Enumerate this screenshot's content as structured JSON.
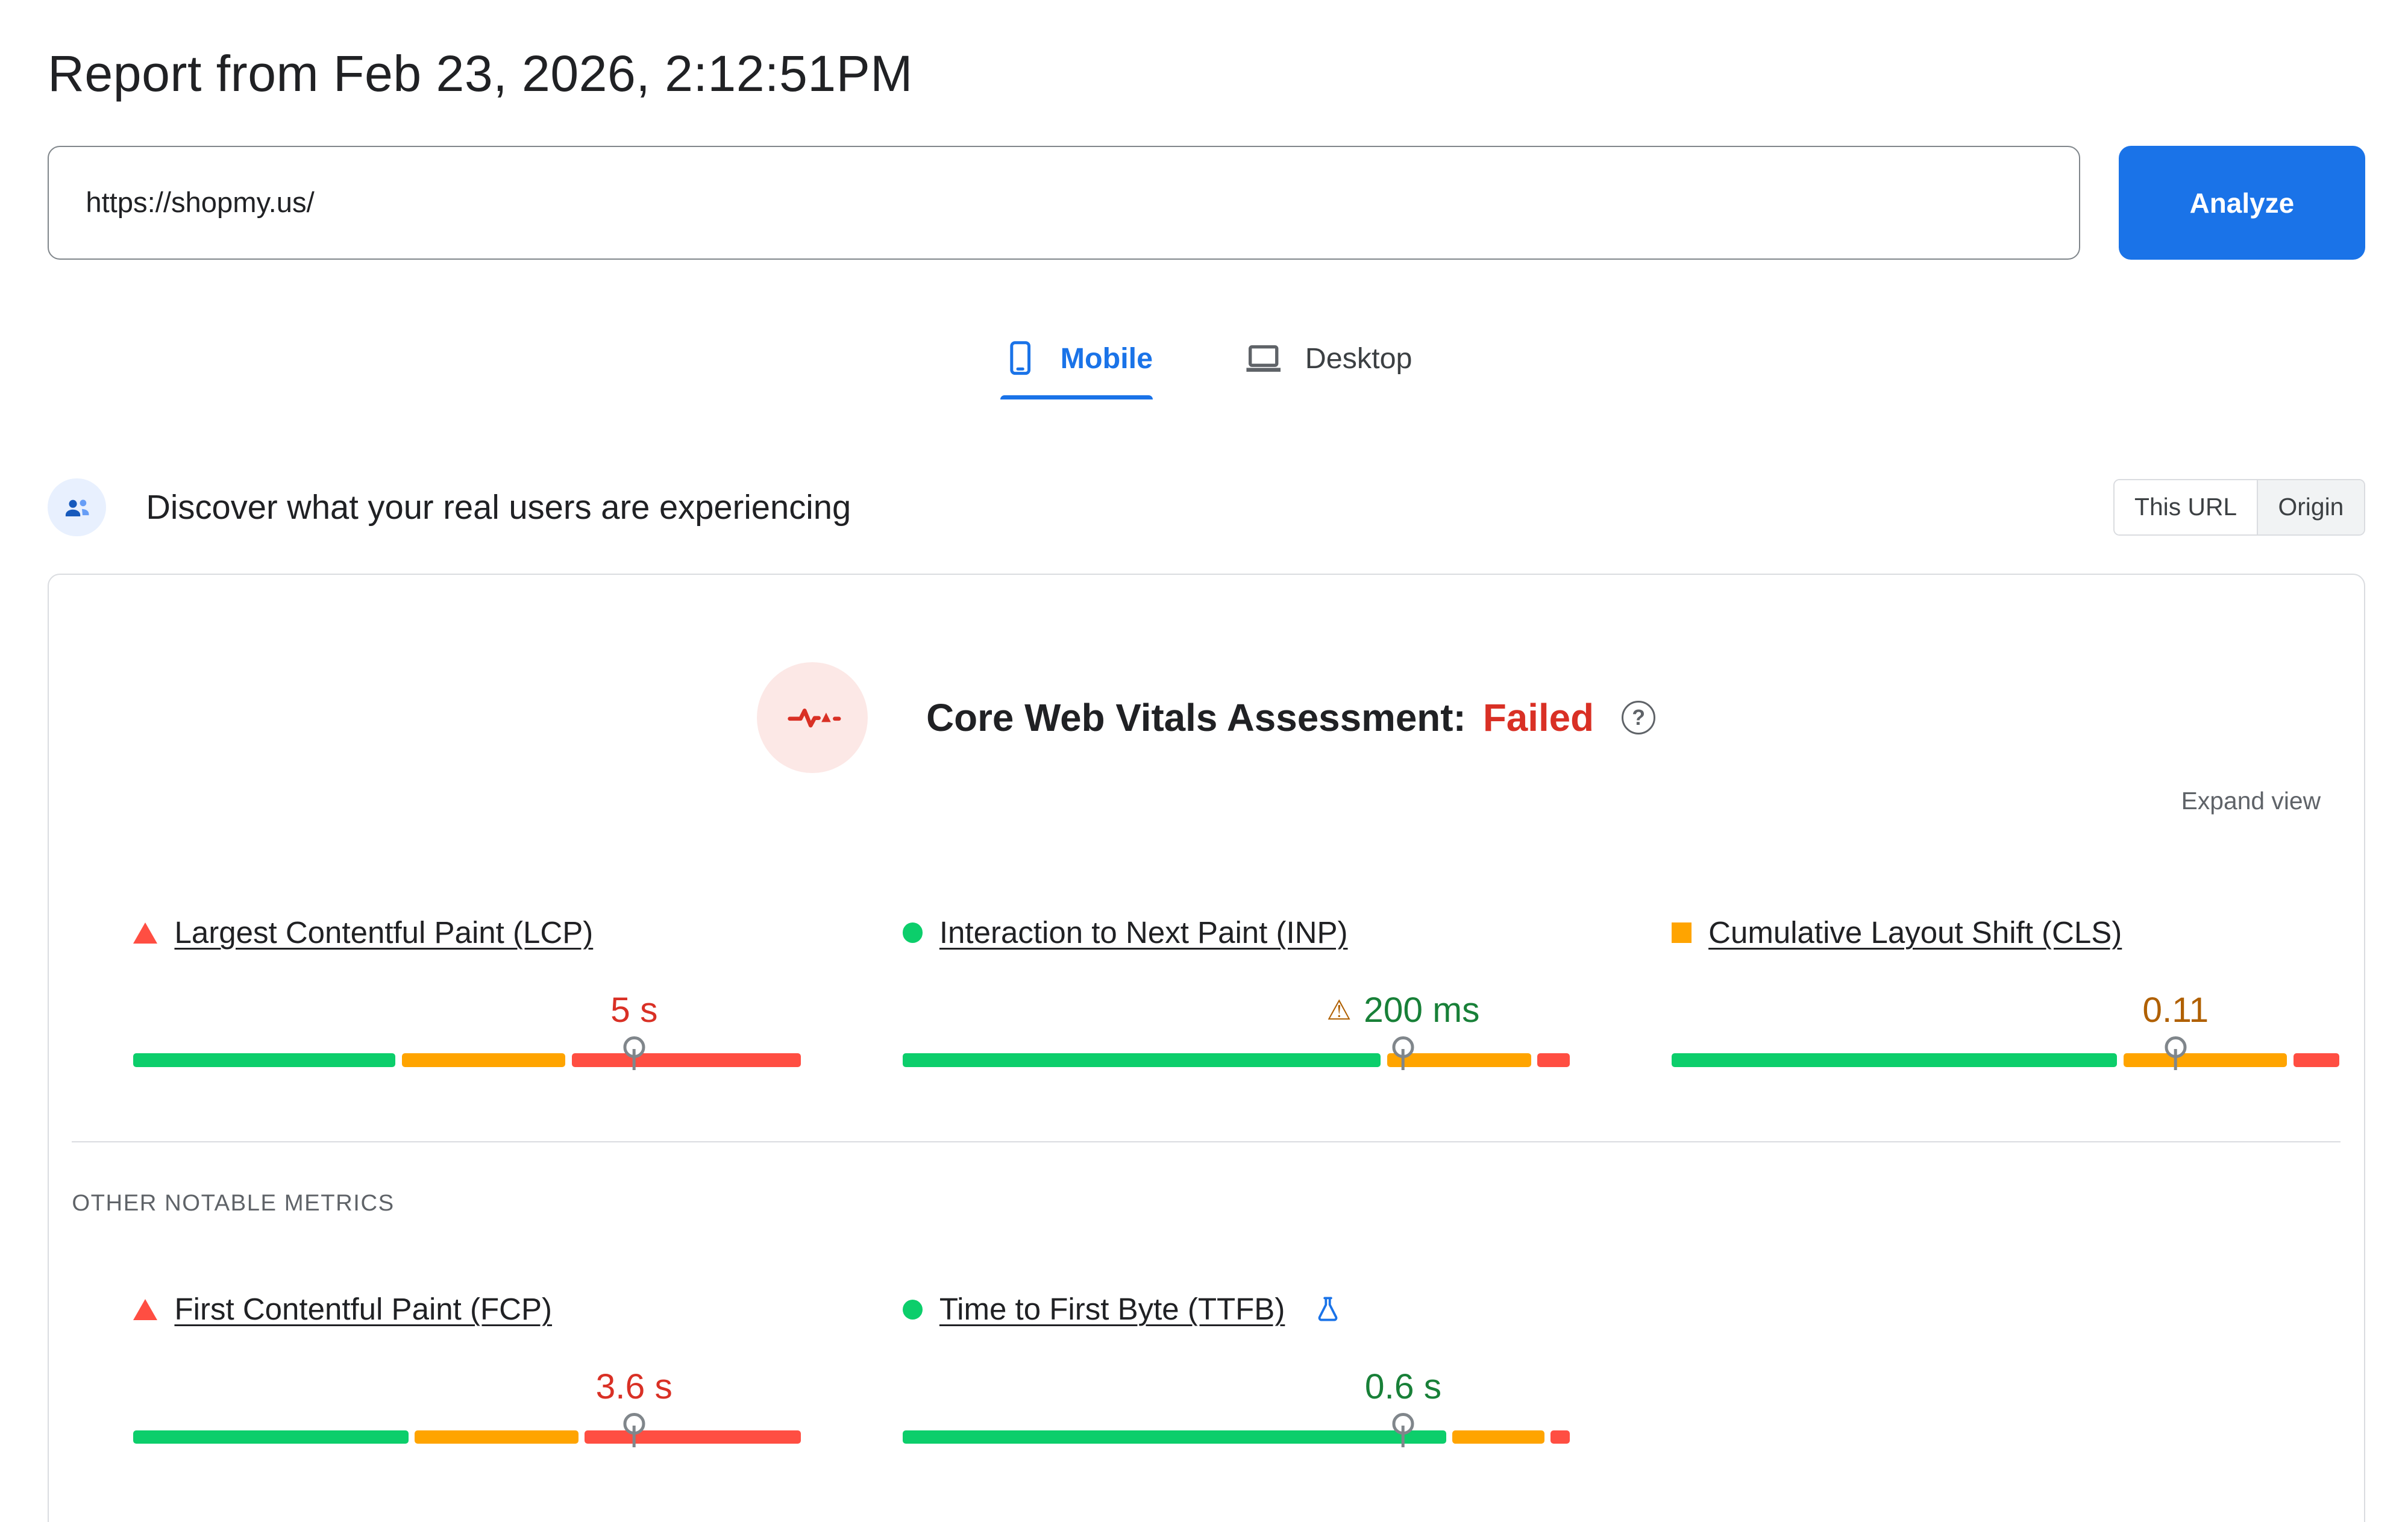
{
  "page": {
    "title": "Report from Feb 23, 2026, 2:12:51PM"
  },
  "url_bar": {
    "value": "https://shopmy.us/",
    "analyze_label": "Analyze"
  },
  "tabs": {
    "mobile": "Mobile",
    "desktop": "Desktop"
  },
  "field_data": {
    "heading": "Discover what your real users are experiencing",
    "scope": {
      "this_url": "This URL",
      "origin": "Origin"
    }
  },
  "assessment": {
    "title": "Core Web Vitals Assessment:",
    "status": "Failed",
    "expand_label": "Expand view",
    "other_metrics_label": "OTHER NOTABLE METRICS"
  },
  "colors": {
    "good": "#0cce6b",
    "average": "#ffa400",
    "poor": "#ff4e42",
    "good_text": "#188038",
    "average_text": "#b06000",
    "poor_text": "#d93025",
    "accent_blue": "#1a73e8",
    "failed_red": "#d93025"
  },
  "icons": {
    "mobile_tab": "smartphone-icon",
    "desktop_tab": "laptop-icon",
    "field_data": "real-users-icon",
    "assessment": "heartbeat-pulse-icon",
    "help": "help-question-icon",
    "ttfb": "experimental-flask-icon",
    "inp_value": "warning-triangle-icon"
  },
  "core_metrics": [
    {
      "name": "Largest Contentful Paint (LCP)",
      "status": "poor",
      "value": "5 s",
      "value_tone": "poor",
      "warning": false,
      "flask": false,
      "marker": 0.75,
      "distribution": {
        "good": 0.4,
        "average": 0.25,
        "poor": 0.35
      }
    },
    {
      "name": "Interaction to Next Paint (INP)",
      "status": "good",
      "value": "200 ms",
      "value_tone": "good",
      "warning": true,
      "flask": false,
      "marker": 0.75,
      "distribution": {
        "good": 0.73,
        "average": 0.22,
        "poor": 0.05
      }
    },
    {
      "name": "Cumulative Layout Shift (CLS)",
      "status": "average",
      "value": "0.11",
      "value_tone": "average",
      "warning": false,
      "flask": false,
      "marker": 0.755,
      "distribution": {
        "good": 0.68,
        "average": 0.25,
        "poor": 0.07
      }
    }
  ],
  "other_metrics": [
    {
      "name": "First Contentful Paint (FCP)",
      "status": "poor",
      "value": "3.6 s",
      "value_tone": "poor",
      "warning": false,
      "flask": false,
      "marker": 0.75,
      "distribution": {
        "good": 0.42,
        "average": 0.25,
        "poor": 0.33
      }
    },
    {
      "name": "Time to First Byte (TTFB)",
      "status": "good",
      "value": "0.6 s",
      "value_tone": "good",
      "warning": false,
      "flask": true,
      "marker": 0.75,
      "distribution": {
        "good": 0.83,
        "average": 0.14,
        "poor": 0.03
      }
    }
  ]
}
